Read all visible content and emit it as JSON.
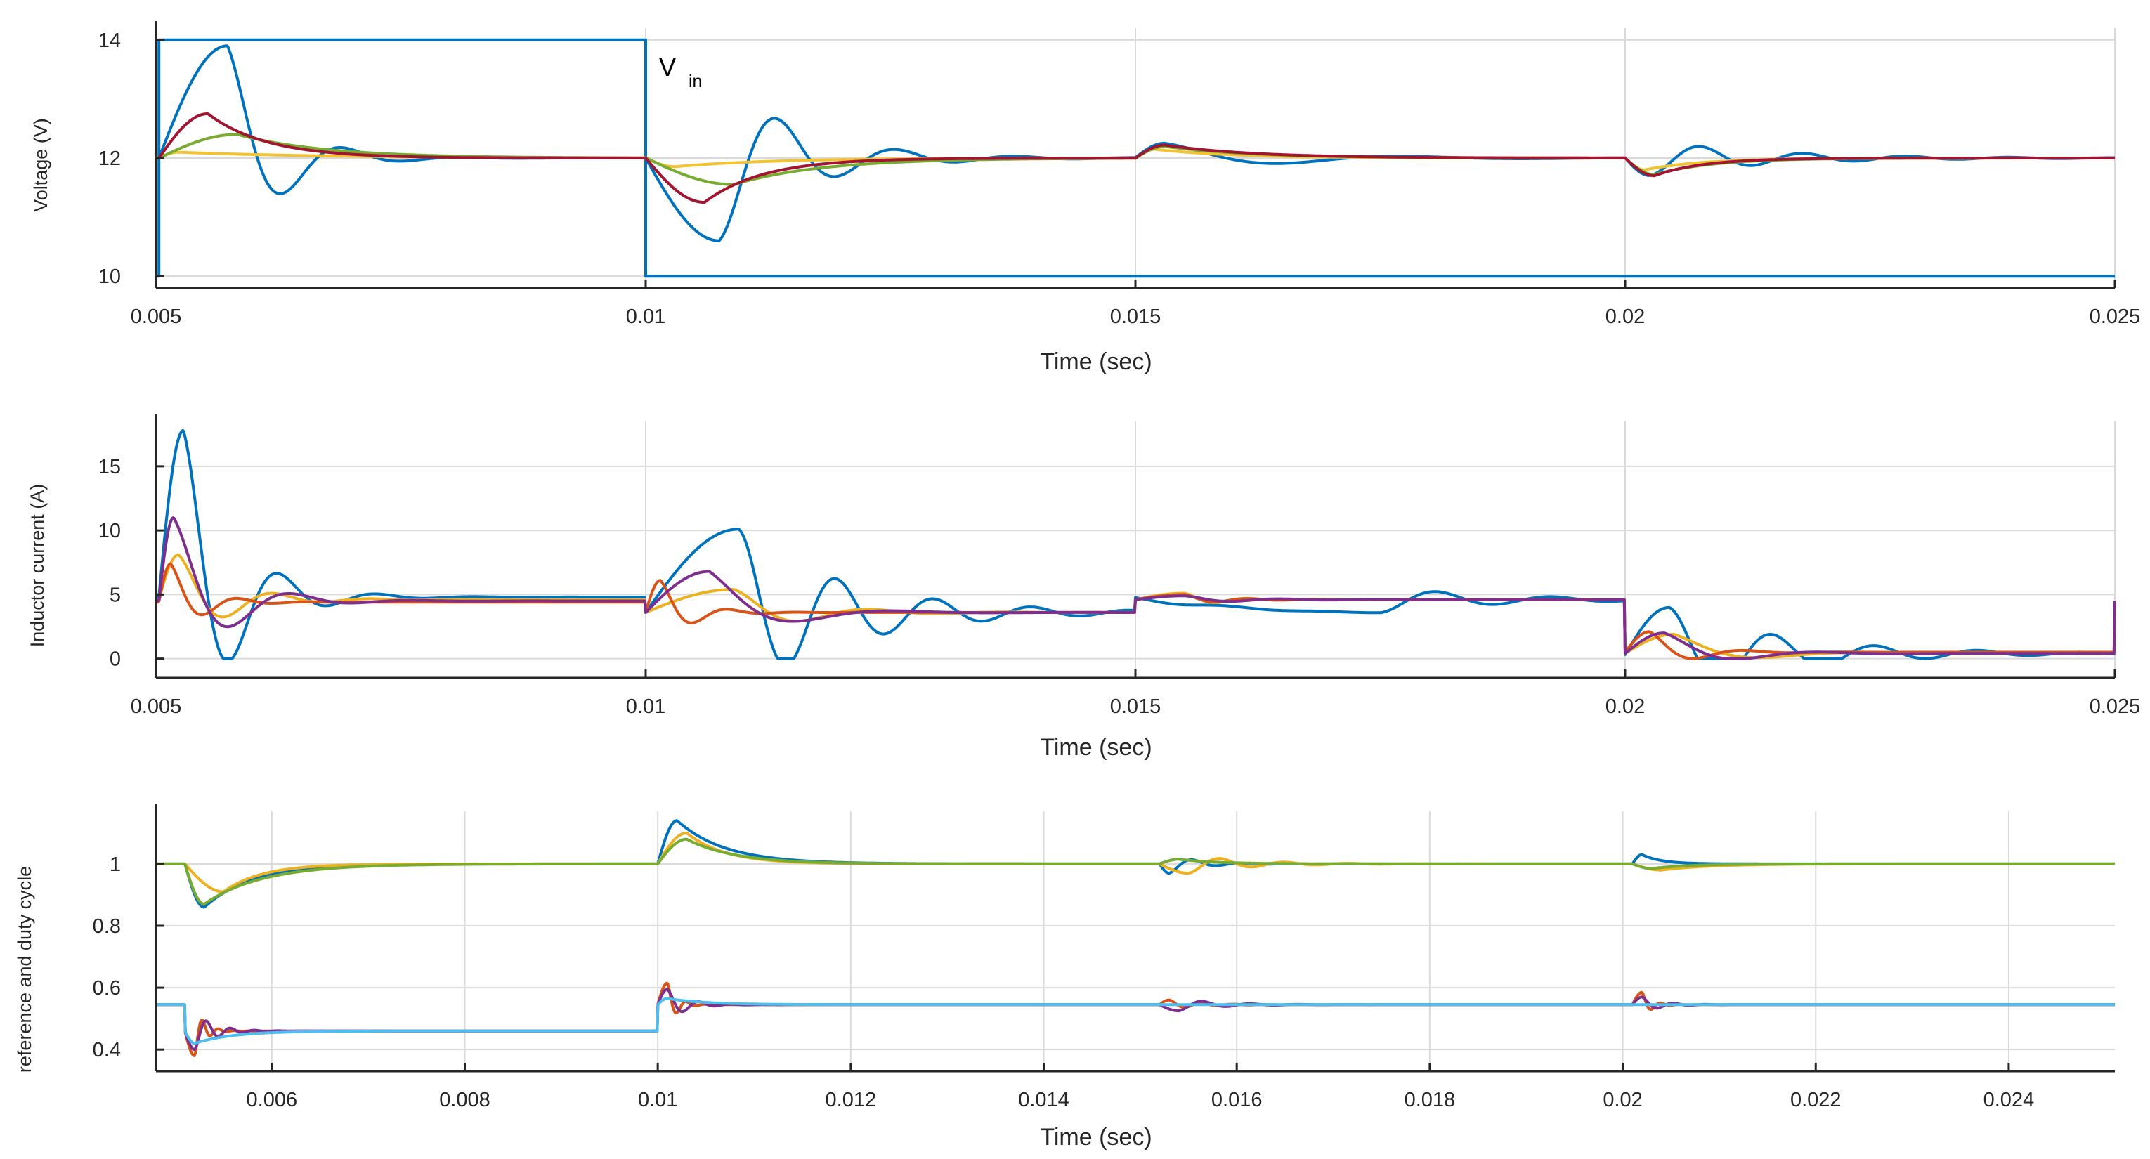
{
  "colors": {
    "blue": "#0072BD",
    "orange": "#EDB120",
    "yellow_light": "#F2C230",
    "green": "#77AC30",
    "dark_red": "#A2142F",
    "orange_red": "#D95319",
    "purple": "#7E2F8E",
    "cyan": "#4DBEEE",
    "grid": "#DADADA"
  },
  "chart_data": [
    {
      "type": "line",
      "xlabel": "Time (sec)",
      "ylabel": "Voltage (V)",
      "xlim": [
        0.005,
        0.025
      ],
      "ylim": [
        9.8,
        14.2
      ],
      "xticks": [
        0.005,
        0.01,
        0.015,
        0.02,
        0.025
      ],
      "xtick_labels": [
        "0.005",
        "0.01",
        "0.015",
        "0.02",
        "0.025"
      ],
      "yticks": [
        10,
        12,
        14
      ],
      "ytick_labels": [
        "10",
        "12",
        "14"
      ],
      "grid": true,
      "annotation": {
        "text": "V",
        "subscript": "in",
        "x": 0.0102,
        "y": 13.7
      },
      "series": [
        {
          "color_key": "blue",
          "kind": "step",
          "x": [
            0.005,
            0.00503,
            0.00503,
            0.01,
            0.01,
            0.025
          ],
          "y": [
            10,
            10,
            14,
            14,
            10,
            10
          ]
        },
        {
          "color_key": "blue",
          "kind": "wave",
          "base": 12,
          "events": [
            {
              "t": 0.00503,
              "amp": 1.9,
              "tau": 0.0005,
              "f": 820,
              "delay": 0.0007,
              "neg": false
            },
            {
              "t": 0.01,
              "amp": -1.4,
              "tau": 0.0008,
              "f": 820,
              "delay": 0.00075,
              "neg": false
            },
            {
              "t": 0.015,
              "amp": 0.25,
              "tau": 0.0012,
              "f": 400,
              "delay": 0.0003,
              "neg": false
            },
            {
              "t": 0.02,
              "amp": -0.3,
              "tau": 0.0012,
              "f": 950,
              "delay": 0.00025,
              "neg": false
            }
          ]
        },
        {
          "color_key": "yellow_light",
          "kind": "wave",
          "base": 12,
          "events": [
            {
              "t": 0.00503,
              "amp": 0.1,
              "tau": 0.0015,
              "f": 0,
              "delay": 0.0002,
              "neg": false
            },
            {
              "t": 0.01,
              "amp": -0.15,
              "tau": 0.001,
              "f": 0,
              "delay": 0.0003,
              "neg": false
            },
            {
              "t": 0.015,
              "amp": 0.15,
              "tau": 0.0008,
              "f": 0,
              "delay": 0.0002,
              "neg": false
            },
            {
              "t": 0.02,
              "amp": -0.2,
              "tau": 0.0006,
              "f": 0,
              "delay": 0.0002,
              "neg": false
            }
          ]
        },
        {
          "color_key": "green",
          "kind": "wave",
          "base": 12,
          "events": [
            {
              "t": 0.00503,
              "amp": 0.4,
              "tau": 0.0009,
              "f": 0,
              "delay": 0.0008,
              "neg": false
            },
            {
              "t": 0.01,
              "amp": -0.45,
              "tau": 0.0009,
              "f": 0,
              "delay": 0.0009,
              "neg": false
            },
            {
              "t": 0.015,
              "amp": 0.2,
              "tau": 0.0009,
              "f": 0,
              "delay": 0.0003,
              "neg": false
            },
            {
              "t": 0.02,
              "amp": -0.28,
              "tau": 0.0006,
              "f": 0,
              "delay": 0.0003,
              "neg": false
            }
          ]
        },
        {
          "color_key": "dark_red",
          "kind": "wave",
          "base": 12,
          "events": [
            {
              "t": 0.00503,
              "amp": 0.75,
              "tau": 0.0006,
              "f": 0,
              "delay": 0.0005,
              "neg": false
            },
            {
              "t": 0.01,
              "amp": -0.75,
              "tau": 0.0006,
              "f": 0,
              "delay": 0.0006,
              "neg": false
            },
            {
              "t": 0.015,
              "amp": 0.22,
              "tau": 0.0009,
              "f": 0,
              "delay": 0.0003,
              "neg": false
            },
            {
              "t": 0.02,
              "amp": -0.3,
              "tau": 0.0005,
              "f": 0,
              "delay": 0.0003,
              "neg": false
            }
          ]
        }
      ]
    },
    {
      "type": "line",
      "xlabel": "Time (sec)",
      "ylabel": "Inductor current (A)",
      "xlim": [
        0.005,
        0.025
      ],
      "ylim": [
        -1.5,
        18.5
      ],
      "xticks": [
        0.005,
        0.01,
        0.015,
        0.02,
        0.025
      ],
      "xtick_labels": [
        "0.005",
        "0.01",
        "0.015",
        "0.02",
        "0.025"
      ],
      "yticks": [
        0,
        5,
        10,
        15
      ],
      "ytick_labels": [
        "0",
        "5",
        "10",
        "15"
      ],
      "grid": true,
      "series": [
        {
          "color_key": "blue",
          "kind": "current",
          "levels": [
            [
              0.005,
              4.8
            ],
            [
              0.01,
              3.6
            ],
            [
              0.015,
              4.6
            ],
            [
              0.02,
              0.4
            ],
            [
              0.025,
              4.5
            ]
          ],
          "events": [
            {
              "t": 0.00503,
              "amp": 13,
              "tau": 0.0005,
              "f": 1000,
              "delay": 0.00025,
              "neg": true
            },
            {
              "t": 0.01,
              "amp": 6.5,
              "tau": 0.0011,
              "f": 1000,
              "delay": 0.00095,
              "neg": true
            },
            {
              "t": 0.015,
              "amp": -1.0,
              "tau": 0.0012,
              "f": 850,
              "delay": 0.0025,
              "neg": true
            },
            {
              "t": 0.02,
              "amp": 3.5,
              "tau": 0.0012,
              "f": 950,
              "delay": 0.00045,
              "neg": true
            }
          ]
        },
        {
          "color_key": "orange",
          "kind": "current",
          "levels": [
            [
              0.005,
              4.6
            ],
            [
              0.01,
              3.6
            ],
            [
              0.015,
              4.6
            ],
            [
              0.02,
              0.4
            ],
            [
              0.025,
              4.5
            ]
          ],
          "events": [
            {
              "t": 0.00503,
              "amp": 3.5,
              "tau": 0.0005,
              "f": 1000,
              "delay": 0.0002,
              "neg": true
            },
            {
              "t": 0.01,
              "amp": 1.8,
              "tau": 0.0007,
              "f": 700,
              "delay": 0.0009,
              "neg": true
            },
            {
              "t": 0.015,
              "amp": 0.5,
              "tau": 0.0004,
              "f": 1500,
              "delay": 0.0005,
              "neg": true
            },
            {
              "t": 0.02,
              "amp": 1.5,
              "tau": 0.0006,
              "f": 500,
              "delay": 0.0005,
              "neg": true
            }
          ]
        },
        {
          "color_key": "orange_red",
          "kind": "current",
          "levels": [
            [
              0.005,
              4.4
            ],
            [
              0.01,
              3.6
            ],
            [
              0.015,
              4.6
            ],
            [
              0.02,
              0.5
            ],
            [
              0.025,
              4.5
            ]
          ],
          "events": [
            {
              "t": 0.00503,
              "amp": 3.0,
              "tau": 0.0003,
              "f": 1400,
              "delay": 0.00012,
              "neg": true
            },
            {
              "t": 0.01,
              "amp": 2.5,
              "tau": 0.0003,
              "f": 1400,
              "delay": 0.00015,
              "neg": true
            },
            {
              "t": 0.015,
              "amp": 0.4,
              "tau": 0.0004,
              "f": 1500,
              "delay": 0.0005,
              "neg": true
            },
            {
              "t": 0.02,
              "amp": 1.6,
              "tau": 0.0004,
              "f": 1000,
              "delay": 0.00025,
              "neg": true
            }
          ]
        },
        {
          "color_key": "purple",
          "kind": "current",
          "levels": [
            [
              0.005,
              4.5
            ],
            [
              0.01,
              3.6
            ],
            [
              0.015,
              4.6
            ],
            [
              0.02,
              0.4
            ],
            [
              0.025,
              4.5
            ]
          ],
          "events": [
            {
              "t": 0.00503,
              "amp": 6.5,
              "tau": 0.0005,
              "f": 800,
              "delay": 0.00015,
              "neg": true
            },
            {
              "t": 0.01,
              "amp": 3.2,
              "tau": 0.0006,
              "f": 500,
              "delay": 0.00065,
              "neg": true
            },
            {
              "t": 0.015,
              "amp": 0.3,
              "tau": 0.0006,
              "f": 1000,
              "delay": 0.0005,
              "neg": true
            },
            {
              "t": 0.02,
              "amp": 1.6,
              "tau": 0.0006,
              "f": 600,
              "delay": 0.0004,
              "neg": true
            }
          ]
        }
      ]
    },
    {
      "type": "line",
      "xlabel": "Time (sec)",
      "ylabel": "reference and duty cycle",
      "xlim": [
        0.0048,
        0.0251
      ],
      "ylim": [
        0.33,
        1.17
      ],
      "xticks": [
        0.006,
        0.008,
        0.01,
        0.012,
        0.014,
        0.016,
        0.018,
        0.02,
        0.022,
        0.024
      ],
      "xtick_labels": [
        "0.006",
        "0.008",
        "0.01",
        "0.012",
        "0.014",
        "0.016",
        "0.018",
        "0.02",
        "0.022",
        "0.024"
      ],
      "yticks": [
        0.4,
        0.6,
        0.8,
        1
      ],
      "ytick_labels": [
        "0.4",
        "0.6",
        "0.8",
        "1"
      ],
      "grid": true,
      "series": [
        {
          "color_key": "blue",
          "kind": "wave",
          "base": 1.0,
          "events": [
            {
              "t": 0.0051,
              "amp": -0.14,
              "tau": 0.0005,
              "f": 0,
              "delay": 0.0002,
              "neg": false
            },
            {
              "t": 0.01,
              "amp": 0.14,
              "tau": 0.0005,
              "f": 0,
              "delay": 0.0002,
              "neg": false
            },
            {
              "t": 0.0152,
              "amp": -0.03,
              "tau": 0.0003,
              "f": 2000,
              "delay": 0.0001,
              "neg": false
            },
            {
              "t": 0.0201,
              "amp": 0.03,
              "tau": 0.0002,
              "f": 0,
              "delay": 0.0001,
              "neg": false
            }
          ]
        },
        {
          "color_key": "orange",
          "kind": "wave",
          "base": 1.0,
          "events": [
            {
              "t": 0.0051,
              "amp": -0.09,
              "tau": 0.0004,
              "f": 0,
              "delay": 0.0004,
              "neg": false
            },
            {
              "t": 0.01,
              "amp": 0.1,
              "tau": 0.0004,
              "f": 0,
              "delay": 0.0003,
              "neg": false
            },
            {
              "t": 0.0152,
              "amp": -0.03,
              "tau": 0.0006,
              "f": 1500,
              "delay": 0.0003,
              "neg": false
            },
            {
              "t": 0.0201,
              "amp": -0.02,
              "tau": 0.0005,
              "f": 0,
              "delay": 0.0003,
              "neg": false
            }
          ]
        },
        {
          "color_key": "green",
          "kind": "wave",
          "base": 1.0,
          "events": [
            {
              "t": 0.0051,
              "amp": -0.13,
              "tau": 0.0006,
              "f": 0,
              "delay": 0.0002,
              "neg": false
            },
            {
              "t": 0.01,
              "amp": 0.08,
              "tau": 0.0005,
              "f": 0,
              "delay": 0.0003,
              "neg": false
            },
            {
              "t": 0.0152,
              "amp": 0.015,
              "tau": 0.0004,
              "f": 0,
              "delay": 0.0002,
              "neg": false
            },
            {
              "t": 0.0201,
              "amp": -0.015,
              "tau": 0.0004,
              "f": 0,
              "delay": 0.0002,
              "neg": false
            }
          ]
        },
        {
          "color_key": "orange_red",
          "kind": "duty",
          "levels": [
            [
              0.0048,
              0.545
            ],
            [
              0.0051,
              0.46
            ],
            [
              0.01,
              0.545
            ],
            [
              0.0251,
              0.545
            ]
          ],
          "events": [
            {
              "t": 0.0051,
              "amp": -0.08,
              "tau": 0.0001,
              "f": 6000,
              "delay": 0.0001,
              "neg": false
            },
            {
              "t": 0.01,
              "amp": 0.07,
              "tau": 0.0001,
              "f": 5000,
              "delay": 0.0001,
              "neg": false
            },
            {
              "t": 0.0152,
              "amp": 0.015,
              "tau": 0.0003,
              "f": 3000,
              "delay": 0.0001,
              "neg": false
            },
            {
              "t": 0.0201,
              "amp": 0.04,
              "tau": 0.0001,
              "f": 5000,
              "delay": 0.0001,
              "neg": false
            }
          ]
        },
        {
          "color_key": "purple",
          "kind": "duty",
          "levels": [
            [
              0.0048,
              0.545
            ],
            [
              0.0051,
              0.46
            ],
            [
              0.01,
              0.545
            ],
            [
              0.0251,
              0.545
            ]
          ],
          "events": [
            {
              "t": 0.0051,
              "amp": -0.06,
              "tau": 0.0002,
              "f": 4000,
              "delay": 0.0001,
              "neg": false
            },
            {
              "t": 0.01,
              "amp": 0.05,
              "tau": 0.0002,
              "f": 3000,
              "delay": 0.0001,
              "neg": false
            },
            {
              "t": 0.0152,
              "amp": -0.02,
              "tau": 0.0004,
              "f": 2000,
              "delay": 0.0002,
              "neg": false
            },
            {
              "t": 0.0201,
              "amp": 0.025,
              "tau": 0.0002,
              "f": 3000,
              "delay": 0.0001,
              "neg": false
            }
          ]
        },
        {
          "color_key": "cyan",
          "kind": "duty",
          "levels": [
            [
              0.0048,
              0.545
            ],
            [
              0.0051,
              0.46
            ],
            [
              0.01,
              0.545
            ],
            [
              0.0251,
              0.545
            ]
          ],
          "events": [
            {
              "t": 0.0051,
              "amp": -0.04,
              "tau": 0.0004,
              "f": 0,
              "delay": 0.0001,
              "neg": false
            },
            {
              "t": 0.01,
              "amp": 0.02,
              "tau": 0.0004,
              "f": 0,
              "delay": 0.0001,
              "neg": false
            },
            {
              "t": 0.0152,
              "amp": 0.0,
              "tau": 0.0004,
              "f": 0,
              "delay": 0.0001,
              "neg": false
            },
            {
              "t": 0.0201,
              "amp": 0.0,
              "tau": 0.0004,
              "f": 0,
              "delay": 0.0001,
              "neg": false
            }
          ]
        }
      ]
    }
  ]
}
